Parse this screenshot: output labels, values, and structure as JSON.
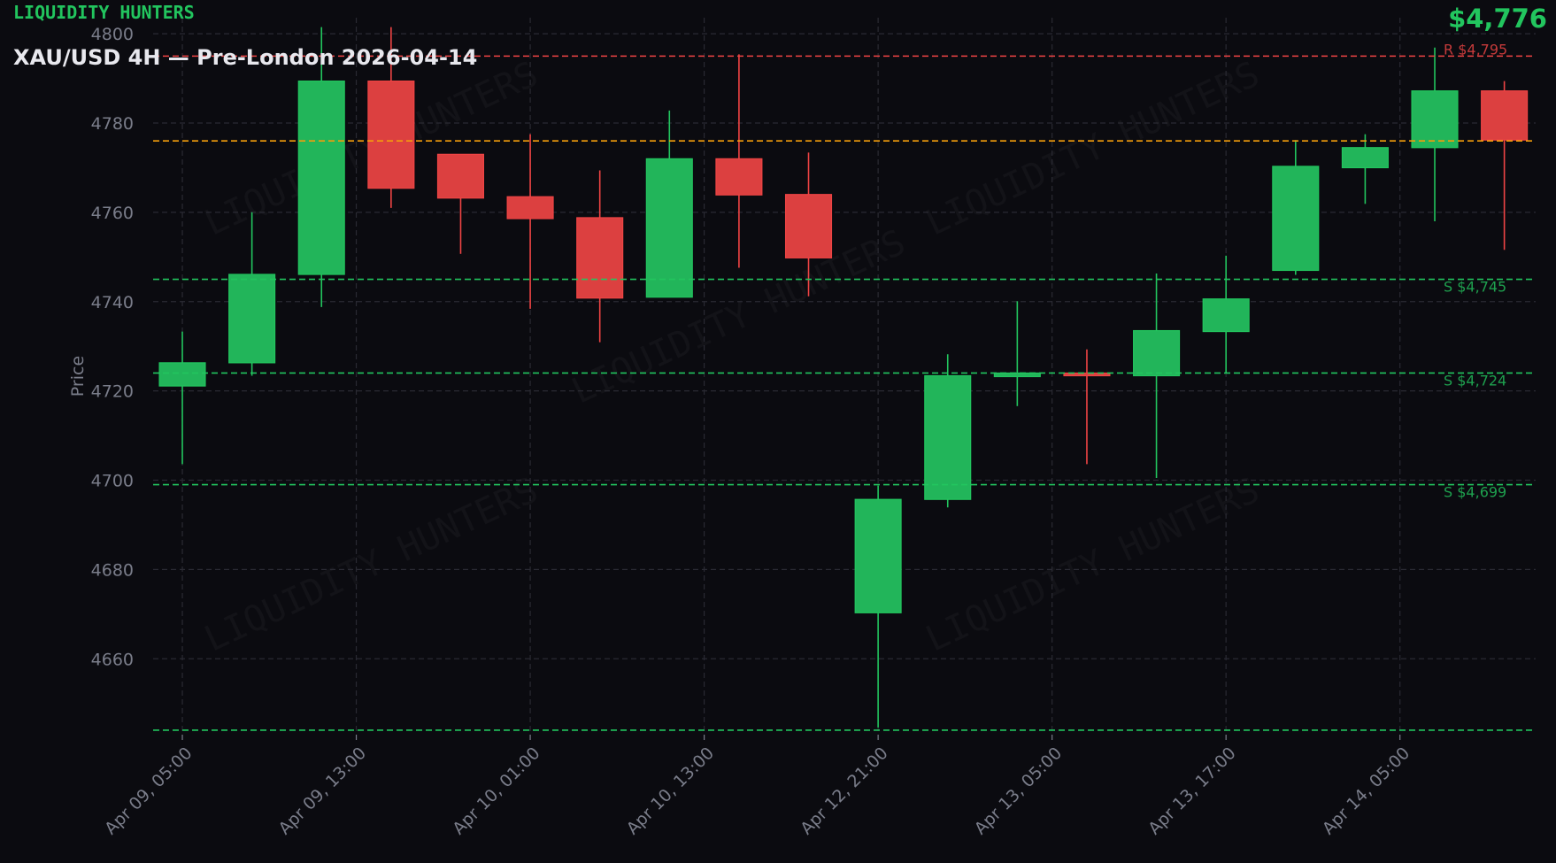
{
  "brand": "LIQUIDITY HUNTERS",
  "title": "XAU/USD 4H — Pre-London 2026-04-14",
  "last_price_label": "$4,776",
  "watermark": "LIQUIDITY HUNTERS",
  "colors": {
    "background": "#0b0b10",
    "up": "#22b55a",
    "down": "#dc4040",
    "resistance": "#ef4444",
    "support": "#22c55e",
    "last_price": "#f59e0b",
    "grid": "#2a2a33",
    "text": "#7a7d8a"
  },
  "chart_data": {
    "type": "candlestick",
    "title": "XAU/USD 4H — Pre-London 2026-04-14",
    "ylabel": "Price",
    "xlabel": "",
    "ylim": [
      4643,
      4803.6
    ],
    "grid": true,
    "yticks": [
      4660,
      4680,
      4700,
      4720,
      4740,
      4760,
      4780,
      4800
    ],
    "xticks": [
      {
        "index": 0,
        "label": "Apr 09, 05:00"
      },
      {
        "index": 2.5,
        "label": "Apr 09, 13:00"
      },
      {
        "index": 5,
        "label": "Apr 10, 01:00"
      },
      {
        "index": 7.5,
        "label": "Apr 10, 13:00"
      },
      {
        "index": 10,
        "label": "Apr 12, 21:00"
      },
      {
        "index": 12.5,
        "label": "Apr 13, 05:00"
      },
      {
        "index": 15,
        "label": "Apr 13, 17:00"
      },
      {
        "index": 17.5,
        "label": "Apr 14, 05:00"
      }
    ],
    "candles": [
      {
        "o": 4721.1,
        "h": 4733.3,
        "l": 4703.6,
        "c": 4726.3
      },
      {
        "o": 4726.3,
        "h": 4760.0,
        "l": 4723.4,
        "c": 4746.1
      },
      {
        "o": 4746.1,
        "h": 4801.5,
        "l": 4738.8,
        "c": 4789.4
      },
      {
        "o": 4789.4,
        "h": 4801.5,
        "l": 4761.0,
        "c": 4765.4
      },
      {
        "o": 4773.0,
        "h": 4773.0,
        "l": 4750.7,
        "c": 4763.2
      },
      {
        "o": 4763.5,
        "h": 4777.5,
        "l": 4738.4,
        "c": 4758.6
      },
      {
        "o": 4758.8,
        "h": 4769.4,
        "l": 4730.9,
        "c": 4740.8
      },
      {
        "o": 4741.0,
        "h": 4782.8,
        "l": 4741.0,
        "c": 4772.0
      },
      {
        "o": 4772.0,
        "h": 4795.4,
        "l": 4747.6,
        "c": 4763.9
      },
      {
        "o": 4764.0,
        "h": 4773.4,
        "l": 4741.2,
        "c": 4749.8
      },
      {
        "o": 4670.3,
        "h": 4698.8,
        "l": 4644.6,
        "c": 4695.7
      },
      {
        "o": 4695.7,
        "h": 4728.2,
        "l": 4693.9,
        "c": 4723.4
      },
      {
        "o": 4723.2,
        "h": 4740.1,
        "l": 4716.6,
        "c": 4724.0
      },
      {
        "o": 4724.0,
        "h": 4729.3,
        "l": 4703.6,
        "c": 4723.4
      },
      {
        "o": 4723.4,
        "h": 4746.3,
        "l": 4700.5,
        "c": 4733.5
      },
      {
        "o": 4733.3,
        "h": 4750.3,
        "l": 4724.0,
        "c": 4740.6
      },
      {
        "o": 4747.0,
        "h": 4776.2,
        "l": 4746.0,
        "c": 4770.3
      },
      {
        "o": 4770.0,
        "h": 4777.5,
        "l": 4761.9,
        "c": 4774.5
      },
      {
        "o": 4774.5,
        "h": 4796.9,
        "l": 4758.0,
        "c": 4787.2
      },
      {
        "o": 4787.2,
        "h": 4789.4,
        "l": 4751.6,
        "c": 4776.2
      }
    ],
    "levels": [
      {
        "type": "resistance",
        "price": 4795,
        "label": "R $4,795"
      },
      {
        "type": "last",
        "price": 4776,
        "label": ""
      },
      {
        "type": "support",
        "price": 4745,
        "label": "S $4,745"
      },
      {
        "type": "support",
        "price": 4724,
        "label": "S $4,724"
      },
      {
        "type": "support",
        "price": 4699,
        "label": "S $4,699"
      },
      {
        "type": "support",
        "price": 4644,
        "label": ""
      }
    ]
  }
}
